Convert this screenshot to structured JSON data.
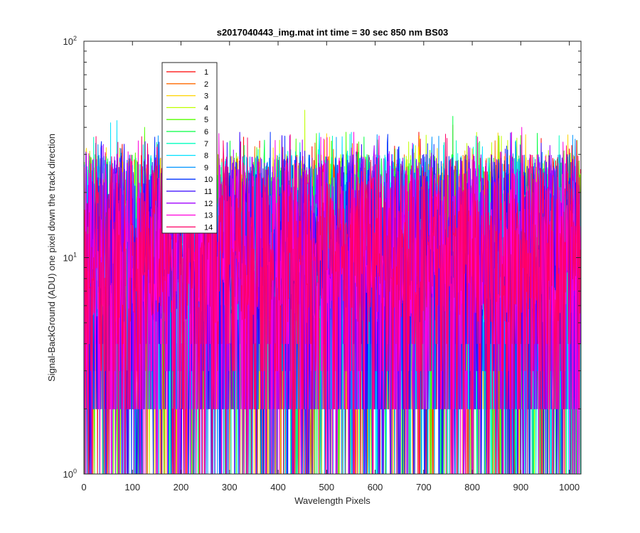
{
  "chart_data": {
    "type": "line",
    "title": "s2017040443_img.mat int time = 30 sec  850 nm BS03",
    "xlabel": "Wavelength Pixels",
    "ylabel": "Signal-BackGround (ADU) one pixel down the track direction",
    "xlim": [
      0,
      1024
    ],
    "ylim": [
      1,
      100
    ],
    "yscale": "log",
    "xticks": [
      0,
      100,
      200,
      300,
      400,
      500,
      600,
      700,
      800,
      900,
      1000
    ],
    "xtick_labels": [
      "0",
      "100",
      "200",
      "300",
      "400",
      "500",
      "600",
      "700",
      "800",
      "900",
      "1000"
    ],
    "yticks": [
      1,
      10,
      100
    ],
    "ytick_labels": [
      {
        "base": "10",
        "exp": "0"
      },
      {
        "base": "10",
        "exp": "1"
      },
      {
        "base": "10",
        "exp": "2"
      }
    ],
    "grid": false,
    "legend_position": "upper-left",
    "series_note": "Each series is a noisy per-pixel trace; values fluctuate between ~1 and ~48 ADU across 1024 pixels (typical 2-30 ADU).",
    "series": [
      {
        "name": "1",
        "color": "#ff0000",
        "typical_range": [
          2,
          30
        ],
        "peaks": [
          {
            "x": 690,
            "y": 38
          },
          {
            "x": 1005,
            "y": 33
          }
        ]
      },
      {
        "name": "2",
        "color": "#ff6a00",
        "typical_range": [
          2,
          30
        ],
        "peaks": [
          {
            "x": 760,
            "y": 41
          },
          {
            "x": 605,
            "y": 35
          }
        ]
      },
      {
        "name": "3",
        "color": "#ffd400",
        "typical_range": [
          2,
          30
        ],
        "peaks": [
          {
            "x": 5,
            "y": 32
          },
          {
            "x": 910,
            "y": 37
          }
        ]
      },
      {
        "name": "4",
        "color": "#bfff00",
        "typical_range": [
          2,
          30
        ],
        "peaks": [
          {
            "x": 455,
            "y": 48
          },
          {
            "x": 840,
            "y": 34
          }
        ]
      },
      {
        "name": "5",
        "color": "#55ff00",
        "typical_range": [
          2,
          30
        ],
        "peaks": [
          {
            "x": 125,
            "y": 40
          },
          {
            "x": 540,
            "y": 38
          }
        ]
      },
      {
        "name": "6",
        "color": "#00ff40",
        "typical_range": [
          2,
          30
        ],
        "peaks": [
          {
            "x": 760,
            "y": 45
          },
          {
            "x": 330,
            "y": 33
          }
        ]
      },
      {
        "name": "7",
        "color": "#00ffbf",
        "typical_range": [
          2,
          30
        ],
        "peaks": [
          {
            "x": 20,
            "y": 36
          },
          {
            "x": 420,
            "y": 31
          }
        ]
      },
      {
        "name": "8",
        "color": "#00e1ff",
        "typical_range": [
          2,
          30
        ],
        "peaks": [
          {
            "x": 55,
            "y": 42
          },
          {
            "x": 68,
            "y": 43
          }
        ]
      },
      {
        "name": "9",
        "color": "#0095ff",
        "typical_range": [
          2,
          30
        ],
        "peaks": [
          {
            "x": 520,
            "y": 36
          },
          {
            "x": 890,
            "y": 32
          }
        ]
      },
      {
        "name": "10",
        "color": "#0033ff",
        "typical_range": [
          2,
          30
        ],
        "peaks": [
          {
            "x": 384,
            "y": 38
          },
          {
            "x": 625,
            "y": 34
          }
        ]
      },
      {
        "name": "11",
        "color": "#3300ff",
        "typical_range": [
          2,
          30
        ],
        "peaks": [
          {
            "x": 295,
            "y": 34
          },
          {
            "x": 700,
            "y": 30
          }
        ]
      },
      {
        "name": "12",
        "color": "#a000ff",
        "typical_range": [
          2,
          30
        ],
        "peaks": [
          {
            "x": 450,
            "y": 35
          },
          {
            "x": 960,
            "y": 33
          }
        ]
      },
      {
        "name": "13",
        "color": "#ff00dd",
        "typical_range": [
          2,
          30
        ],
        "peaks": [
          {
            "x": 902,
            "y": 40
          },
          {
            "x": 556,
            "y": 38
          }
        ]
      },
      {
        "name": "14",
        "color": "#ff0066",
        "typical_range": [
          2,
          30
        ],
        "peaks": [
          {
            "x": 425,
            "y": 37
          },
          {
            "x": 270,
            "y": 33
          }
        ]
      }
    ]
  }
}
